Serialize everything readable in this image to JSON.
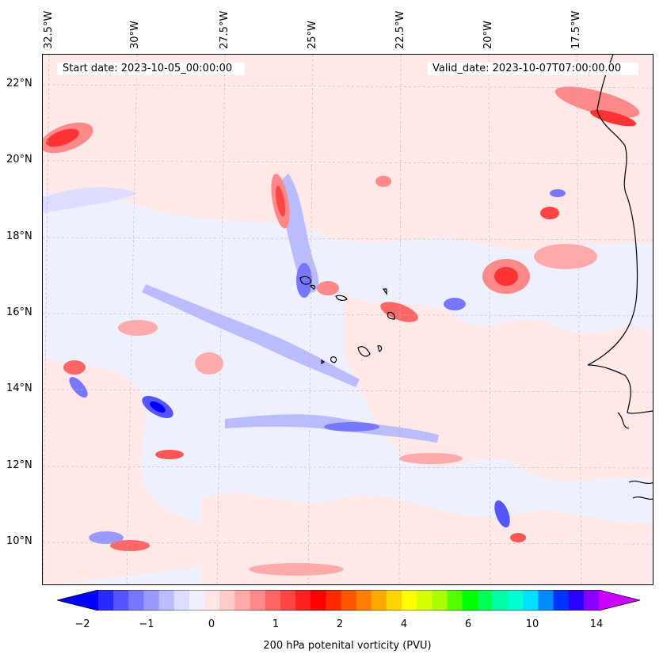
{
  "map": {
    "start_date": "Start date: 2023-10-05_00:00:00",
    "valid_date": "Valid_date: 2023-10-07T07:00:00.00",
    "lon_labels": [
      "32.5°W",
      "30°W",
      "27.5°W",
      "25°W",
      "22.5°W",
      "20°W",
      "17.5°W"
    ],
    "lat_labels": [
      "22°N",
      "20°N",
      "18°N",
      "16°N",
      "14°N",
      "12°N",
      "10°N"
    ]
  },
  "colorbar": {
    "label": "200 hPa potenital vorticity (PVU)",
    "ticks": [
      "−2",
      "−1",
      "0",
      "1",
      "2",
      "4",
      "6",
      "10",
      "14"
    ],
    "colors": [
      "#0000ff",
      "#2a2aff",
      "#5555ff",
      "#7777ff",
      "#9999ff",
      "#bbbbff",
      "#ddddff",
      "#eef0ff",
      "#ffe6e6",
      "#ffcccc",
      "#ffaaaa",
      "#ff8888",
      "#ff6666",
      "#ff4444",
      "#ff2222",
      "#ff0000",
      "#ff2a00",
      "#ff5500",
      "#ff8000",
      "#ffaa00",
      "#ffd500",
      "#ffff00",
      "#d5ff00",
      "#aaff00",
      "#55ff00",
      "#00ff00",
      "#00ff55",
      "#00ffaa",
      "#00ffd5",
      "#00e0ff",
      "#0088ff",
      "#0033ff",
      "#2a00ff",
      "#8800ff",
      "#cc00ff"
    ]
  }
}
